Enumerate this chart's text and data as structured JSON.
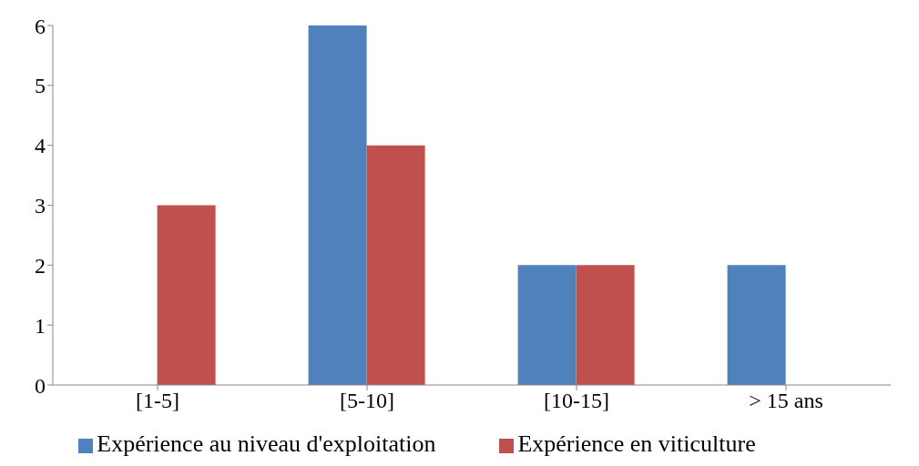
{
  "chart_data": {
    "type": "bar",
    "categories": [
      "[1-5]",
      "[5-10]",
      "[10-15]",
      "> 15 ans"
    ],
    "series": [
      {
        "name": "Expérience au niveau d'exploitation",
        "color": "#4f81bd",
        "values": [
          0,
          6,
          2,
          2
        ]
      },
      {
        "name": "Expérience en viticulture",
        "color": "#c0504d",
        "values": [
          3,
          4,
          2,
          0
        ]
      }
    ],
    "ylim": [
      0,
      6
    ],
    "yticks": [
      0,
      1,
      2,
      3,
      4,
      5,
      6
    ],
    "grid": false,
    "legend": "bottom"
  }
}
